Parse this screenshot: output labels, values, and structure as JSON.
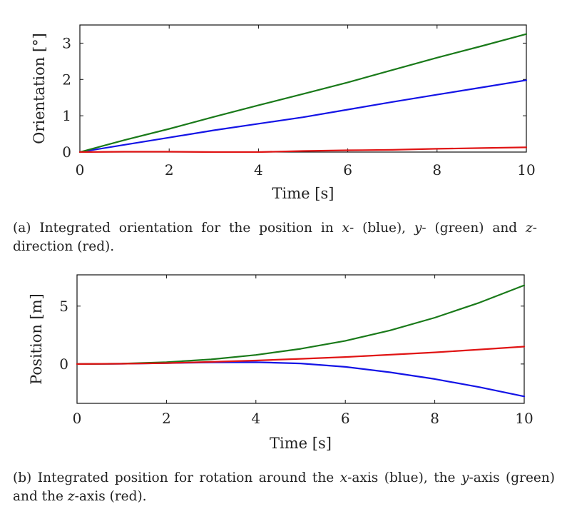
{
  "chart_data": [
    {
      "type": "line",
      "title": "",
      "xlabel": "Time [s]",
      "ylabel": "Orientation [°]",
      "xlim": [
        0,
        10
      ],
      "ylim": [
        0,
        3.5
      ],
      "xticks": [
        "0",
        "2",
        "4",
        "6",
        "8",
        "10"
      ],
      "yticks": [
        "0",
        "1",
        "2",
        "3"
      ],
      "grid": false,
      "series": [
        {
          "color": "#1414e6",
          "x": [
            0,
            1,
            2,
            3,
            4,
            5,
            6,
            7,
            8,
            9,
            10
          ],
          "y": [
            0,
            0.2,
            0.4,
            0.6,
            0.78,
            0.96,
            1.17,
            1.38,
            1.58,
            1.78,
            1.98
          ]
        },
        {
          "color": "#1a7a1a",
          "x": [
            0,
            1,
            2,
            3,
            4,
            5,
            6,
            7,
            8,
            9,
            10
          ],
          "y": [
            0,
            0.33,
            0.64,
            0.97,
            1.29,
            1.6,
            1.92,
            2.26,
            2.6,
            2.92,
            3.25
          ]
        },
        {
          "color": "#e01414",
          "x": [
            0,
            1,
            2,
            3,
            4,
            5,
            6,
            7,
            8,
            9,
            10
          ],
          "y": [
            0,
            0.01,
            0.01,
            0,
            0,
            0.03,
            0.05,
            0.06,
            0.09,
            0.11,
            0.13
          ]
        }
      ]
    },
    {
      "type": "line",
      "title": "",
      "xlabel": "Time [s]",
      "ylabel": "Position [m]",
      "xlim": [
        0,
        10
      ],
      "ylim": [
        -3.4,
        7.7
      ],
      "xticks": [
        "0",
        "2",
        "4",
        "6",
        "8",
        "10"
      ],
      "yticks": [
        "0",
        "5"
      ],
      "grid": false,
      "series": [
        {
          "color": "#1414e6",
          "x": [
            0,
            1,
            2,
            3,
            4,
            5,
            6,
            7,
            8,
            9,
            10
          ],
          "y": [
            0,
            0.02,
            0.08,
            0.14,
            0.15,
            0.05,
            -0.25,
            -0.72,
            -1.3,
            -2,
            -2.8
          ]
        },
        {
          "color": "#1a7a1a",
          "x": [
            0,
            1,
            2,
            3,
            4,
            5,
            6,
            7,
            8,
            9,
            10
          ],
          "y": [
            0,
            0.03,
            0.16,
            0.4,
            0.78,
            1.31,
            2.0,
            2.9,
            4.0,
            5.3,
            6.8
          ]
        },
        {
          "color": "#e01414",
          "x": [
            0,
            1,
            2,
            3,
            4,
            5,
            6,
            7,
            8,
            9,
            10
          ],
          "y": [
            0,
            0.02,
            0.08,
            0.18,
            0.3,
            0.45,
            0.6,
            0.8,
            1.0,
            1.25,
            1.5
          ]
        }
      ]
    }
  ],
  "captions": {
    "a": {
      "label": "(a)",
      "p1": "Integrated orientation for the position in ",
      "v1": "x",
      "p2": "- (blue), ",
      "v2": "y",
      "p3": "- (green) and ",
      "v3": "z",
      "p4": "-direction (red)."
    },
    "b": {
      "label": "(b)",
      "p1": "Integrated position for rotation around the ",
      "v1": "x",
      "p2": "-axis (blue), the ",
      "v2": "y",
      "p3": "-axis (green) and the ",
      "v3": "z",
      "p4": "-axis (red)."
    }
  }
}
